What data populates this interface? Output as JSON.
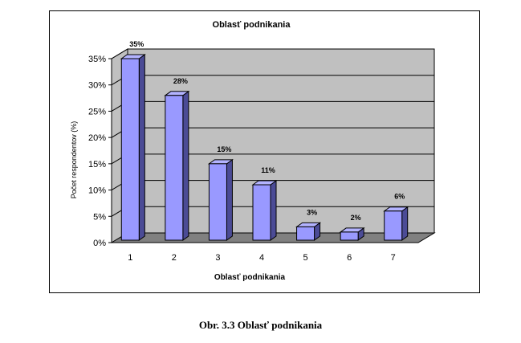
{
  "chart_data": {
    "type": "bar",
    "title": "Oblasť podnikania",
    "xlabel": "Oblasť podnikania",
    "ylabel": "Počet respondentov (%)",
    "categories": [
      "1",
      "2",
      "3",
      "4",
      "5",
      "6",
      "7"
    ],
    "values": [
      35,
      28,
      15,
      11,
      3,
      2,
      6
    ],
    "data_labels": [
      "35%",
      "28%",
      "15%",
      "11%",
      "3%",
      "2%",
      "6%"
    ],
    "y_ticks": [
      "0%",
      "5%",
      "10%",
      "15%",
      "20%",
      "25%",
      "30%",
      "35%"
    ],
    "ylim": [
      0,
      35
    ],
    "grid": true,
    "three_d": true,
    "colors": {
      "bar_front": "#9999ff",
      "bar_side": "#4b4b96",
      "bar_top": "#b3b3ff",
      "wall": "#c0c0c0",
      "floor": "#808080"
    }
  },
  "caption": "Obr. 3.3 Oblasť podnikania"
}
